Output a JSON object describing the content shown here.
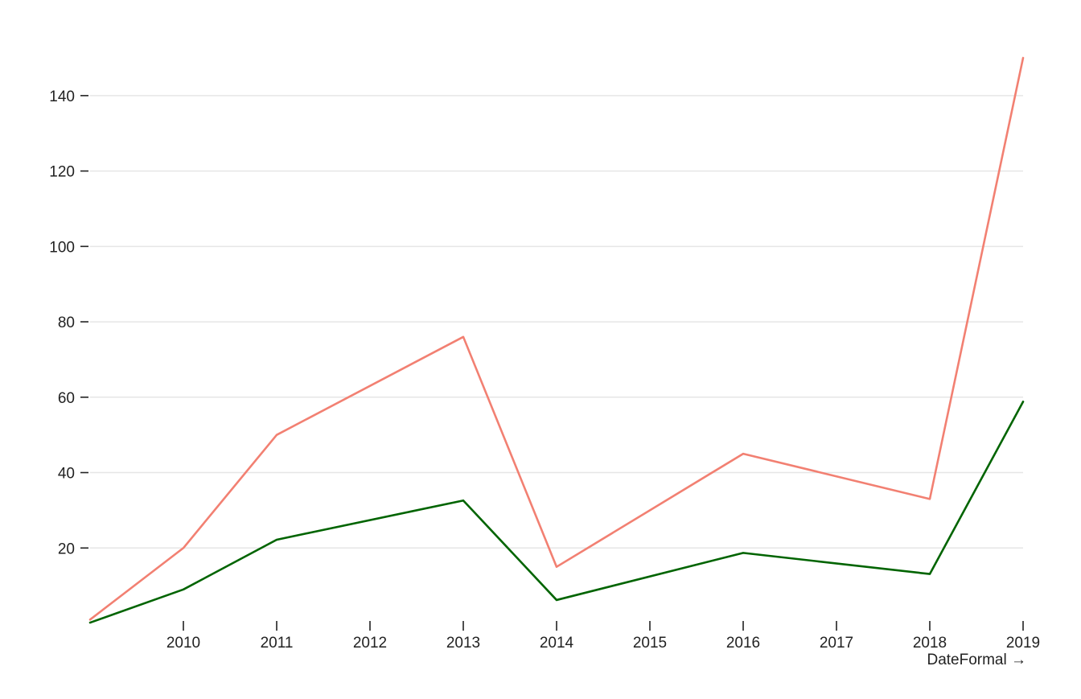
{
  "chart_data": {
    "type": "line",
    "xlabel": "DateFormal →",
    "ylabel": "",
    "xlim": [
      2009.1,
      2019.1
    ],
    "ylim": [
      0,
      150
    ],
    "grid": true,
    "x_ticks": [
      2010,
      2011,
      2012,
      2013,
      2014,
      2015,
      2016,
      2017,
      2018,
      2019
    ],
    "y_ticks": [
      20,
      40,
      60,
      80,
      100,
      120,
      140
    ],
    "series": [
      {
        "color": "#f28072",
        "x": [
          2009.1,
          2010.1,
          2011.1,
          2013.1,
          2014.1,
          2016.1,
          2018.1,
          2019.1
        ],
        "values": [
          1,
          20,
          50,
          76,
          15,
          45,
          33,
          150
        ]
      },
      {
        "color": "#006400",
        "x": [
          2009.1,
          2010.1,
          2011.1,
          2013.1,
          2014.1,
          2016.1,
          2018.1,
          2019.1
        ],
        "values": [
          0.2,
          9,
          22.2,
          32.6,
          6.2,
          18.7,
          13.1,
          58.8
        ]
      }
    ]
  }
}
